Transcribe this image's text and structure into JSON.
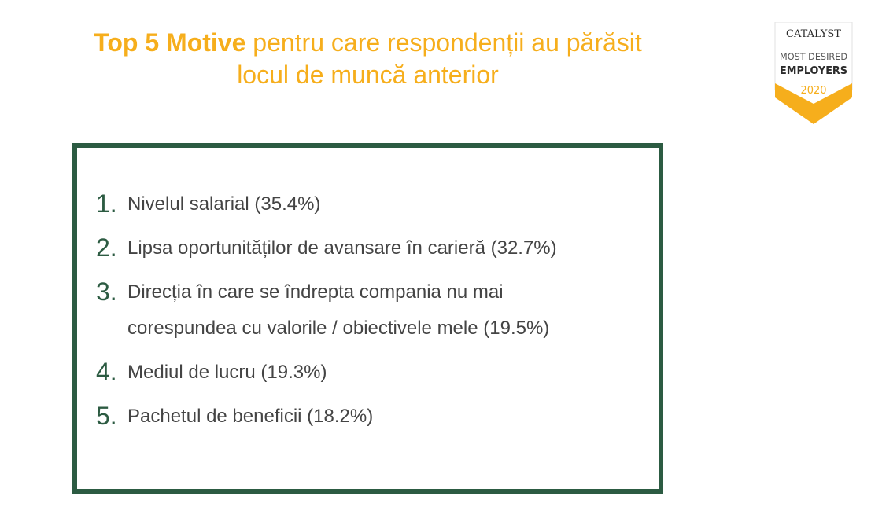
{
  "title": {
    "bold_part": "Top 5 Motive",
    "rest_part": " pentru care respondenții au părăsit",
    "line2": "locul de muncă anterior"
  },
  "badge": {
    "brand": "CATALYST",
    "line1": "MOST DESIRED",
    "line2": "EMPLOYERS",
    "year": "2020",
    "colors": {
      "gold": "#f6ae1c",
      "dark": "#2b2b2b",
      "grey": "#c7c7c7"
    }
  },
  "reasons": [
    {
      "number": "1.",
      "text": "Nivelul salarial (35.4%)"
    },
    {
      "number": "2.",
      "text": "Lipsa oportunităților de avansare în carieră (32.7%)"
    },
    {
      "number": "3.",
      "text": "Direcția în care se îndrepta compania nu mai corespundea cu valorile / obiectivele mele (19.5%)"
    },
    {
      "number": "4.",
      "text": "Mediul de lucru (19.3%)"
    },
    {
      "number": "5.",
      "text": "Pachetul de beneficii (18.2%)"
    }
  ],
  "colors": {
    "accent": "#f6ae1c",
    "frame": "#2c5b42",
    "text": "#444444"
  }
}
